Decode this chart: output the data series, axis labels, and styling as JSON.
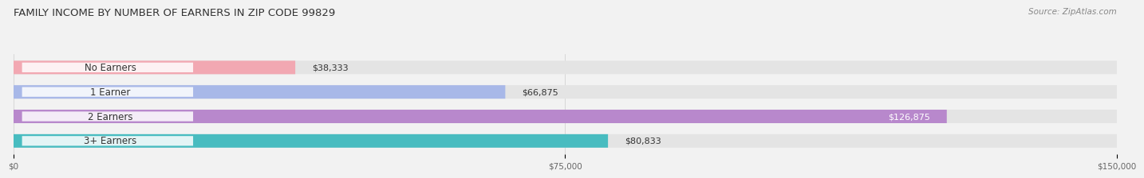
{
  "title": "FAMILY INCOME BY NUMBER OF EARNERS IN ZIP CODE 99829",
  "source": "Source: ZipAtlas.com",
  "categories": [
    "No Earners",
    "1 Earner",
    "2 Earners",
    "3+ Earners"
  ],
  "values": [
    38333,
    66875,
    126875,
    80833
  ],
  "bar_colors": [
    "#f2a8b2",
    "#a8b8e8",
    "#b888cc",
    "#48bcc0"
  ],
  "label_colors": [
    "#555555",
    "#555555",
    "#ffffff",
    "#555555"
  ],
  "value_labels": [
    "$38,333",
    "$66,875",
    "$126,875",
    "$80,833"
  ],
  "xmax": 150000,
  "xtick_labels": [
    "$0",
    "$75,000",
    "$150,000"
  ],
  "xtick_values": [
    0,
    75000,
    150000
  ],
  "background_color": "#f2f2f2",
  "bar_bg_color": "#e4e4e4",
  "title_fontsize": 9.5,
  "source_fontsize": 7.5,
  "label_fontsize": 8.5,
  "value_fontsize": 8.0
}
